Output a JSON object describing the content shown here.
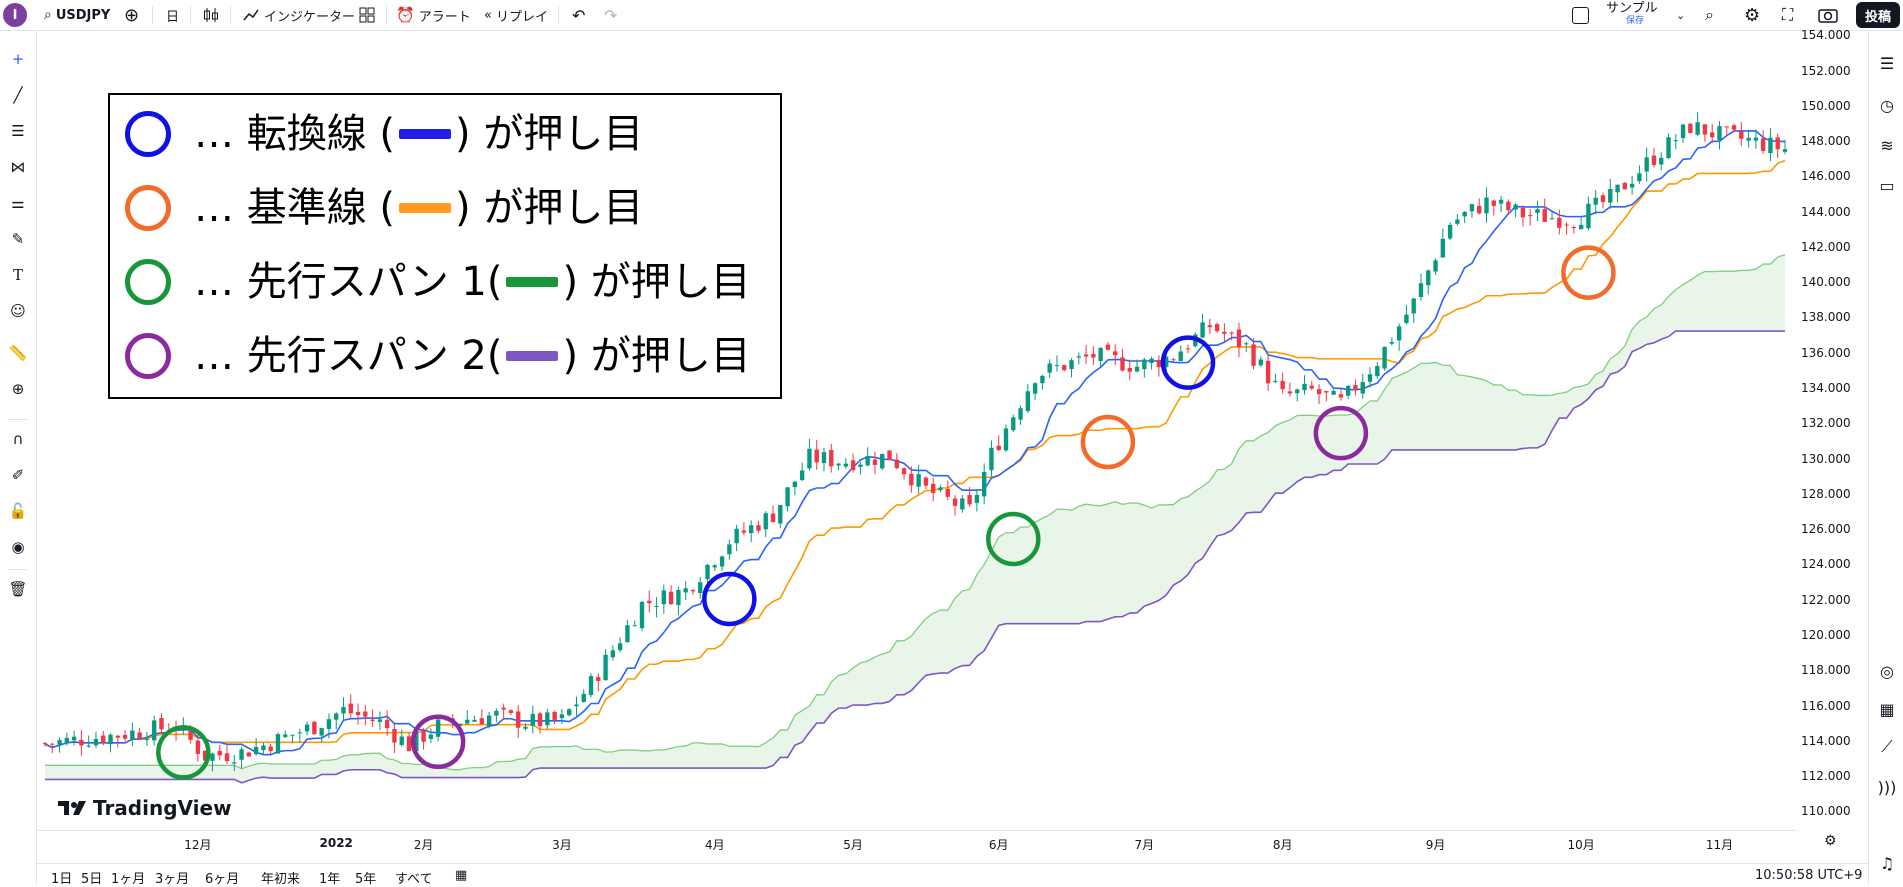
{
  "toolbar": {
    "avatar": "I",
    "symbol": "USDJPY",
    "interval": "日",
    "indicators": "インジケーター",
    "alert": "アラート",
    "replay": "リプレイ",
    "layout_name": "サンプル",
    "layout_status": "保存",
    "post": "投稿"
  },
  "legend": {
    "items": [
      {
        "prefix": "… 転換線 (",
        "suffix": ") が押し目",
        "color": "#1010e8"
      },
      {
        "prefix": "… 基準線 (",
        "suffix": ") が押し目",
        "color": "#f36b2a"
      },
      {
        "prefix": "… 先行スパン 1(",
        "suffix": ") が押し目",
        "color": "#17963a"
      },
      {
        "prefix": "… 先行スパン 2(",
        "suffix": ") が押し目",
        "color": "#8b2a9e"
      }
    ],
    "bar_colors": [
      "#1f1fe8",
      "#ff9a1f",
      "#17963a",
      "#7e57c2"
    ]
  },
  "watermark": "TradingView",
  "bottom": {
    "ranges": [
      "1日",
      "5日",
      "1ヶ月",
      "3ヶ月",
      "6ヶ月",
      "年初来",
      "1年",
      "5年",
      "すべて"
    ],
    "time": "10:50:58 UTC+9"
  },
  "chart_data": {
    "type": "candlestick",
    "symbol": "USDJPY",
    "timeframe": "日",
    "ylim": [
      109.0,
      154.3
    ],
    "y_ticks": [
      "154.000",
      "152.000",
      "150.000",
      "148.000",
      "146.000",
      "144.000",
      "142.000",
      "140.000",
      "138.000",
      "136.000",
      "134.000",
      "132.000",
      "130.000",
      "128.000",
      "126.000",
      "124.000",
      "122.000",
      "120.000",
      "118.000",
      "116.000",
      "114.000",
      "112.000",
      "110.000"
    ],
    "x_ticks": [
      {
        "label": "12月",
        "day": 21
      },
      {
        "label": "2022",
        "day": 40
      },
      {
        "label": "2月",
        "day": 52
      },
      {
        "label": "3月",
        "day": 71
      },
      {
        "label": "4月",
        "day": 92
      },
      {
        "label": "5月",
        "day": 111
      },
      {
        "label": "6月",
        "day": 131
      },
      {
        "label": "7月",
        "day": 151
      },
      {
        "label": "8月",
        "day": 170
      },
      {
        "label": "9月",
        "day": 191
      },
      {
        "label": "10月",
        "day": 211
      },
      {
        "label": "11月",
        "day": 230
      }
    ],
    "n_days": 240,
    "price_path": [
      [
        0,
        113.9
      ],
      [
        10,
        114.4
      ],
      [
        18,
        114.9
      ],
      [
        22,
        113.2
      ],
      [
        27,
        113.4
      ],
      [
        30,
        113.8
      ],
      [
        37,
        114.9
      ],
      [
        41,
        115.8
      ],
      [
        46,
        115.1
      ],
      [
        50,
        113.8
      ],
      [
        54,
        114.9
      ],
      [
        58,
        115.3
      ],
      [
        62,
        115.5
      ],
      [
        66,
        115.1
      ],
      [
        71,
        115.2
      ],
      [
        75,
        117.3
      ],
      [
        82,
        121.8
      ],
      [
        88,
        122.6
      ],
      [
        94,
        125.4
      ],
      [
        100,
        126.9
      ],
      [
        105,
        130.1
      ],
      [
        110,
        129.9
      ],
      [
        116,
        130.2
      ],
      [
        121,
        128.3
      ],
      [
        127,
        127.1
      ],
      [
        130,
        130.3
      ],
      [
        136,
        134.8
      ],
      [
        144,
        135.9
      ],
      [
        150,
        135.3
      ],
      [
        155,
        135.9
      ],
      [
        160,
        137.6
      ],
      [
        165,
        136.4
      ],
      [
        170,
        133.6
      ],
      [
        174,
        133.9
      ],
      [
        178,
        133.2
      ],
      [
        183,
        135.6
      ],
      [
        188,
        138.9
      ],
      [
        193,
        143.4
      ],
      [
        198,
        144.6
      ],
      [
        203,
        143.9
      ],
      [
        210,
        143.6
      ],
      [
        215,
        144.8
      ],
      [
        220,
        146.8
      ],
      [
        226,
        148.9
      ],
      [
        230,
        148.4
      ],
      [
        234,
        148.1
      ],
      [
        239,
        147.6
      ]
    ],
    "circles": [
      {
        "line": "転換線",
        "color": "#1010e8",
        "day": 94,
        "price": 122.1
      },
      {
        "line": "転換線",
        "color": "#1010e8",
        "day": 157,
        "price": 135.5
      },
      {
        "line": "基準線",
        "color": "#f36b2a",
        "day": 146,
        "price": 131.0
      },
      {
        "line": "基準線",
        "color": "#f36b2a",
        "day": 212,
        "price": 140.6
      },
      {
        "line": "先行スパン1",
        "color": "#17963a",
        "day": 19,
        "price": 113.4
      },
      {
        "line": "先行スパン1",
        "color": "#17963a",
        "day": 133,
        "price": 125.5
      },
      {
        "line": "先行スパン2",
        "color": "#8b2a9e",
        "day": 54,
        "price": 114.0
      },
      {
        "line": "先行スパン2",
        "color": "#8b2a9e",
        "day": 178,
        "price": 131.5
      }
    ],
    "colors": {
      "up": "#089981",
      "down": "#f23645",
      "tenkan": "#2962ff",
      "kijun": "#ff9800",
      "span_a": "#7fcf7f",
      "span_b": "#7e57c2",
      "cloud": "rgba(100,190,100,0.15)"
    }
  }
}
